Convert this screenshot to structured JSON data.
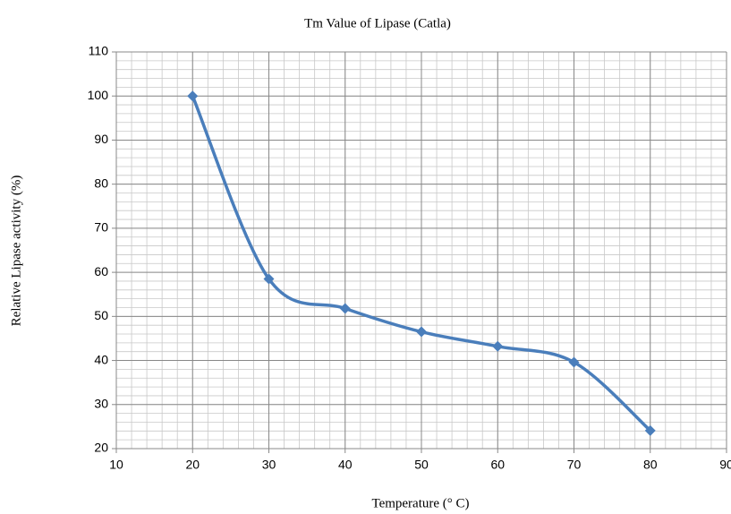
{
  "chart_data": {
    "type": "line",
    "title": "Tm Value of Lipase  (Catla)",
    "x_label": "Temperature (° C)",
    "y_label": "Relative Lipase activity (%)",
    "x": [
      20,
      30,
      40,
      50,
      60,
      70,
      80
    ],
    "series": [
      {
        "name": "Relative Lipase activity",
        "color": "#4a7ebb",
        "values": [
          100,
          58.5,
          51.8,
          46.5,
          43.2,
          39.6,
          24.1
        ]
      }
    ],
    "xlim": [
      10,
      90
    ],
    "xticks": [
      10,
      20,
      30,
      40,
      50,
      60,
      70,
      80,
      90
    ],
    "ylim": [
      20,
      110
    ],
    "yticks": [
      20,
      30,
      40,
      50,
      60,
      70,
      80,
      90,
      100,
      110
    ],
    "grid": true,
    "x_minor_step": 2,
    "y_minor_step": 2,
    "smooth": true,
    "marker": "diamond"
  }
}
